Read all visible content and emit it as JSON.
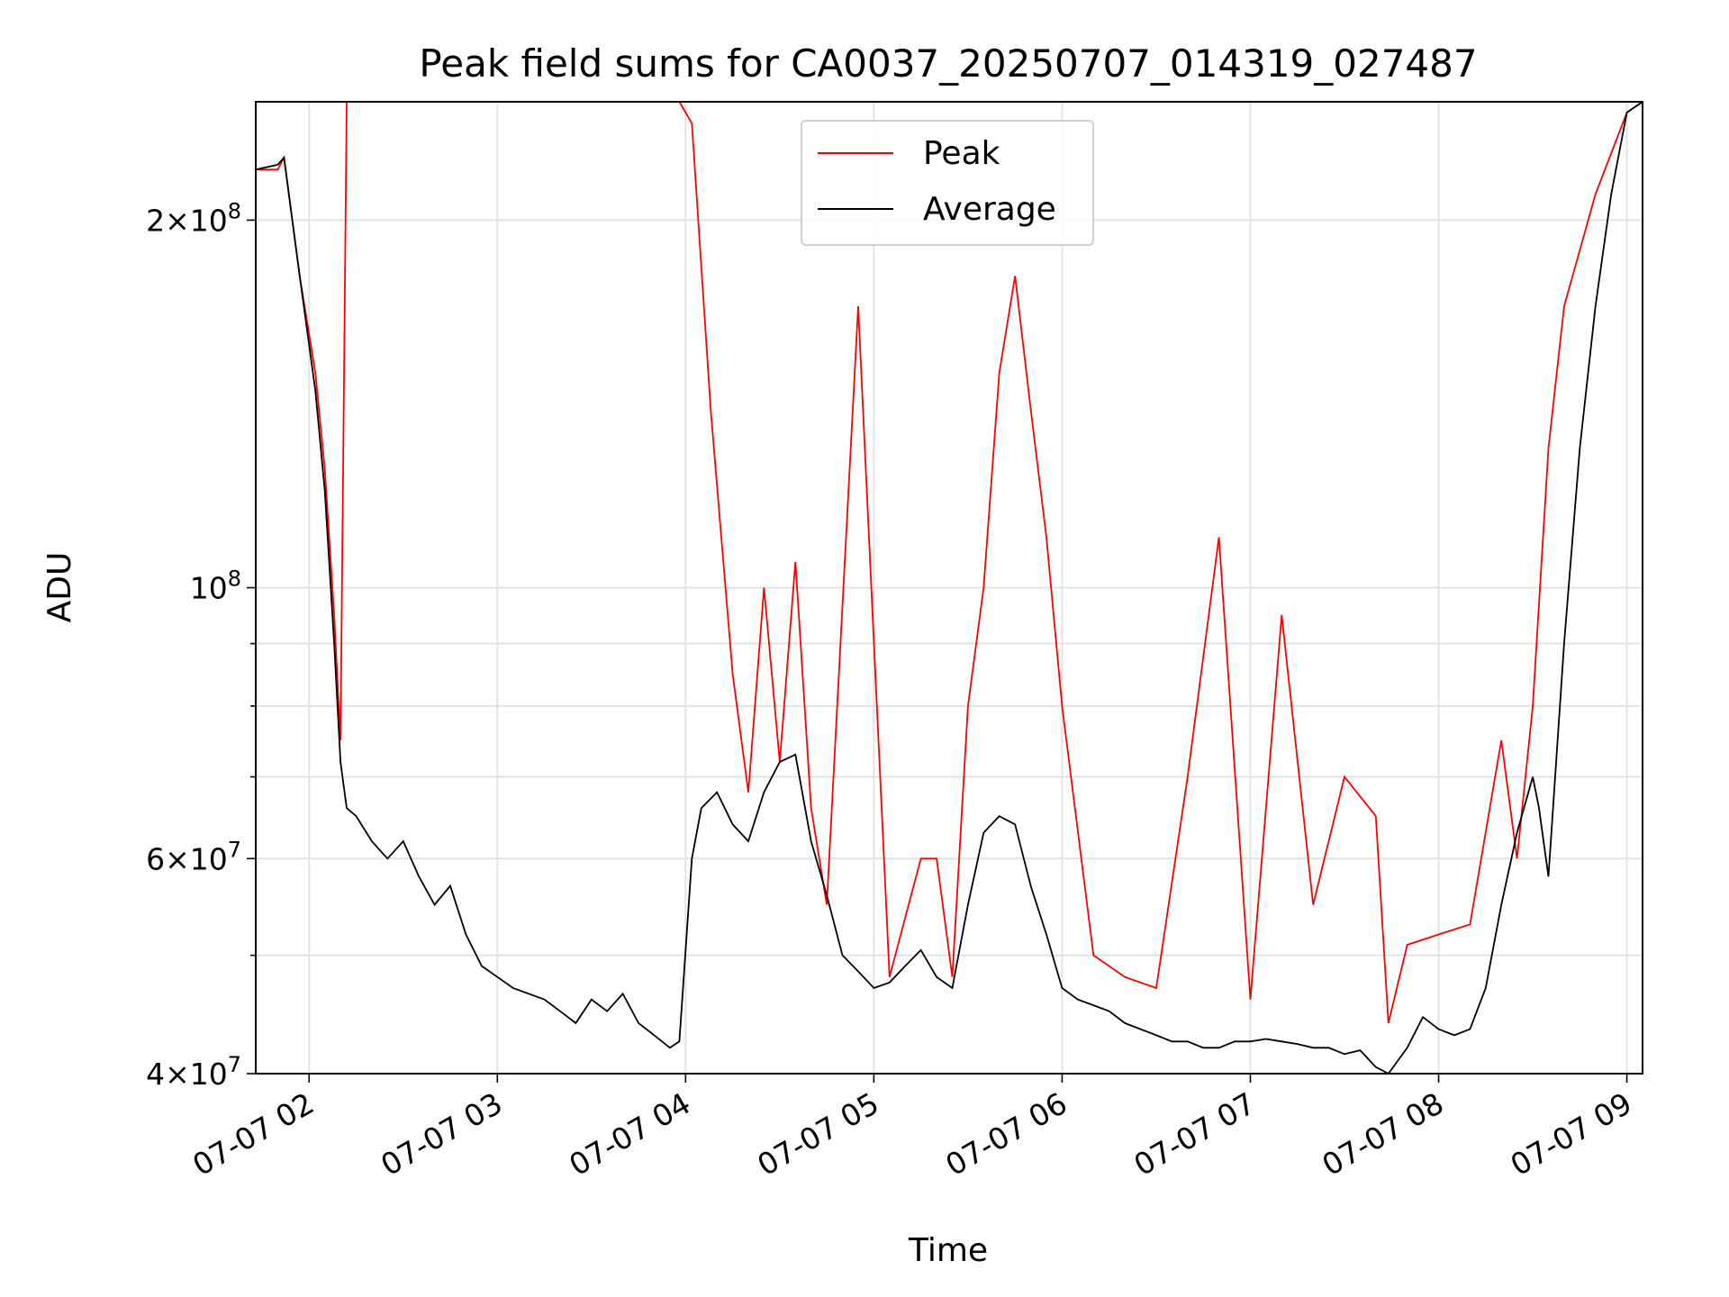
{
  "chart_data": {
    "type": "line",
    "title": "Peak field sums for CA0037_20250707_014319_027487",
    "xlabel": "Time",
    "ylabel": "ADU",
    "x_scale": "time",
    "y_scale": "log",
    "xlim": [
      "2025-07-07 01:43",
      "2025-07-07 09:05"
    ],
    "ylim": [
      40000000,
      250000000
    ],
    "grid": true,
    "legend_position": "top-center",
    "x_ticks": [
      "07-07 02",
      "07-07 03",
      "07-07 04",
      "07-07 05",
      "07-07 06",
      "07-07 07",
      "07-07 08",
      "07-07 09"
    ],
    "y_ticks_major": [
      {
        "value": 40000000,
        "mantissa": "4",
        "exponent": "7"
      },
      {
        "value": 60000000,
        "mantissa": "6",
        "exponent": "7"
      },
      {
        "value": 100000000,
        "mantissa": "",
        "exponent": "8"
      },
      {
        "value": 200000000,
        "mantissa": "2",
        "exponent": "8"
      }
    ],
    "y_ticks_minor": [
      50000000,
      70000000,
      80000000,
      90000000,
      300000000
    ],
    "series": [
      {
        "name": "Peak",
        "color": "#ff0000",
        "x": [
          "01:43",
          "01:50",
          "01:52",
          "01:57",
          "02:02",
          "02:05",
          "02:08",
          "02:10",
          "02:12",
          "02:20",
          "02:30",
          "02:40",
          "02:50",
          "03:00",
          "03:10",
          "03:20",
          "03:30",
          "03:40",
          "03:50",
          "03:58",
          "04:02",
          "04:08",
          "04:15",
          "04:20",
          "04:25",
          "04:30",
          "04:35",
          "04:40",
          "04:45",
          "04:55",
          "05:05",
          "05:15",
          "05:20",
          "05:25",
          "05:30",
          "05:35",
          "05:40",
          "05:45",
          "05:50",
          "05:55",
          "06:00",
          "06:10",
          "06:20",
          "06:30",
          "06:40",
          "06:50",
          "07:00",
          "07:10",
          "07:20",
          "07:30",
          "07:40",
          "07:44",
          "07:50",
          "08:00",
          "08:10",
          "08:20",
          "08:25",
          "08:30",
          "08:35",
          "08:40",
          "08:50",
          "09:00",
          "09:05"
        ],
        "y": [
          220000000,
          220000000,
          225000000,
          180000000,
          150000000,
          125000000,
          95000000,
          75000000,
          250000000,
          250000000,
          250000000,
          250000000,
          250000000,
          250000000,
          250000000,
          250000000,
          250000000,
          250000000,
          250000000,
          250000000,
          240000000,
          140000000,
          85000000,
          68000000,
          100000000,
          72000000,
          105000000,
          66000000,
          55000000,
          170000000,
          48000000,
          60000000,
          60000000,
          48000000,
          80000000,
          100000000,
          150000000,
          180000000,
          140000000,
          110000000,
          80000000,
          50000000,
          48000000,
          47000000,
          70000000,
          110000000,
          46000000,
          95000000,
          55000000,
          70000000,
          65000000,
          44000000,
          51000000,
          52000000,
          53000000,
          75000000,
          60000000,
          80000000,
          130000000,
          170000000,
          210000000,
          245000000,
          250000000
        ]
      },
      {
        "name": "Average",
        "color": "#000000",
        "x": [
          "01:43",
          "01:50",
          "01:52",
          "01:57",
          "02:02",
          "02:05",
          "02:08",
          "02:10",
          "02:12",
          "02:15",
          "02:20",
          "02:25",
          "02:30",
          "02:35",
          "02:40",
          "02:45",
          "02:50",
          "02:55",
          "03:00",
          "03:05",
          "03:10",
          "03:15",
          "03:20",
          "03:25",
          "03:30",
          "03:35",
          "03:40",
          "03:45",
          "03:50",
          "03:55",
          "03:58",
          "04:02",
          "04:05",
          "04:10",
          "04:15",
          "04:20",
          "04:25",
          "04:30",
          "04:35",
          "04:40",
          "04:45",
          "04:50",
          "04:55",
          "05:00",
          "05:05",
          "05:10",
          "05:15",
          "05:20",
          "05:25",
          "05:30",
          "05:35",
          "05:40",
          "05:45",
          "05:50",
          "05:55",
          "06:00",
          "06:05",
          "06:10",
          "06:15",
          "06:20",
          "06:25",
          "06:30",
          "06:35",
          "06:40",
          "06:45",
          "06:50",
          "06:55",
          "07:00",
          "07:05",
          "07:10",
          "07:15",
          "07:20",
          "07:25",
          "07:30",
          "07:35",
          "07:40",
          "07:44",
          "07:50",
          "07:55",
          "08:00",
          "08:05",
          "08:10",
          "08:15",
          "08:20",
          "08:25",
          "08:30",
          "08:32",
          "08:35",
          "08:40",
          "08:45",
          "08:50",
          "08:55",
          "09:00",
          "09:05"
        ],
        "y": [
          220000000,
          222000000,
          225000000,
          180000000,
          145000000,
          120000000,
          90000000,
          72000000,
          66000000,
          65000000,
          62000000,
          60000000,
          62000000,
          58000000,
          55000000,
          57000000,
          52000000,
          49000000,
          48000000,
          47000000,
          46500000,
          46000000,
          45000000,
          44000000,
          46000000,
          45000000,
          46500000,
          44000000,
          43000000,
          42000000,
          42500000,
          60000000,
          66000000,
          68000000,
          64000000,
          62000000,
          68000000,
          72000000,
          73000000,
          62000000,
          56000000,
          50000000,
          48500000,
          47000000,
          47500000,
          49000000,
          50500000,
          48000000,
          47000000,
          55000000,
          63000000,
          65000000,
          64000000,
          57000000,
          52000000,
          47000000,
          46000000,
          45500000,
          45000000,
          44000000,
          43500000,
          43000000,
          42500000,
          42500000,
          42000000,
          42000000,
          42500000,
          42500000,
          42700000,
          42500000,
          42300000,
          42000000,
          42000000,
          41500000,
          41800000,
          40500000,
          40000000,
          42000000,
          44500000,
          43500000,
          43000000,
          43500000,
          47000000,
          55000000,
          63000000,
          70000000,
          66000000,
          58000000,
          90000000,
          130000000,
          170000000,
          210000000,
          245000000,
          250000000
        ]
      }
    ]
  }
}
